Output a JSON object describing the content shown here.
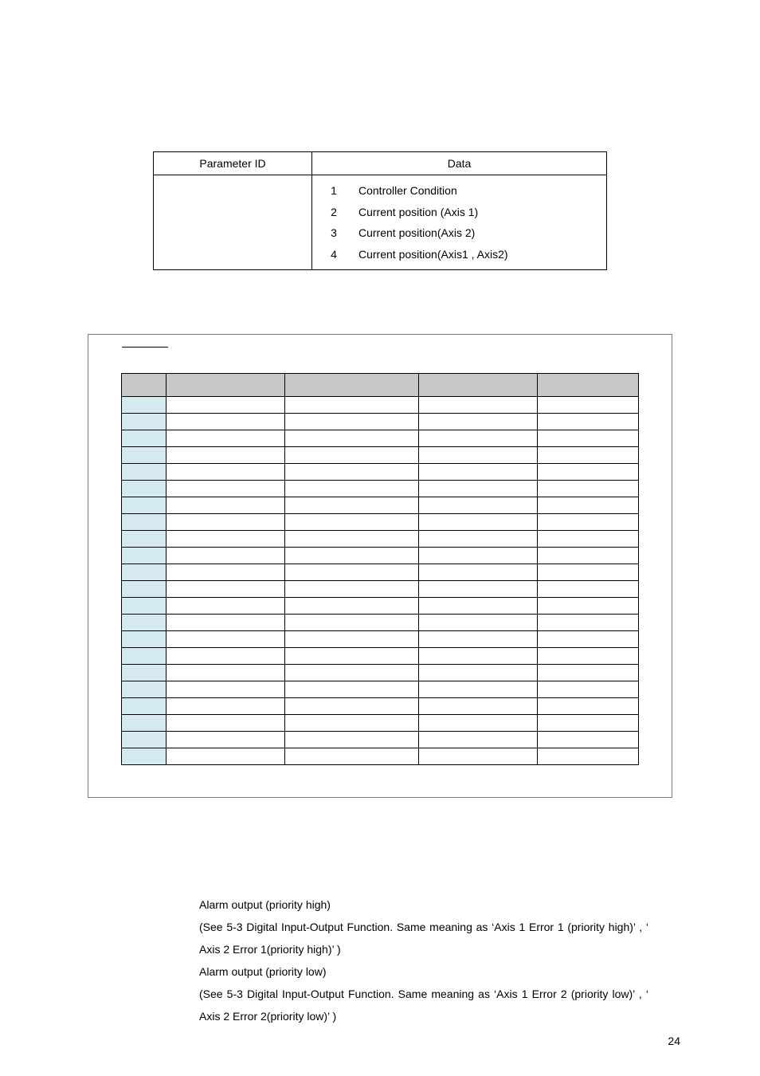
{
  "top_table": {
    "headers": [
      "Parameter ID",
      "Data"
    ],
    "data_items": [
      {
        "num": "1",
        "text": "Controller Condition"
      },
      {
        "num": "2",
        "text": "Current position (Axis 1)"
      },
      {
        "num": "3",
        "text": "Current position(Axis 2)"
      },
      {
        "num": "4",
        "text": "Current position(Axis1 , Axis2)"
      }
    ]
  },
  "inner_table": {
    "num_data_rows": 22,
    "num_cols": 5
  },
  "notes": {
    "line1": "Alarm output (priority high)",
    "line2": "(See 5-3 Digital Input-Output Function. Same meaning as ‘Axis 1 Error 1 (priority high)’ , ‘ Axis 2 Error 1(priority high)’ )",
    "line3": "Alarm output (priority low)",
    "line4": "(See 5-3 Digital Input-Output Function. Same meaning as ‘Axis 1 Error 2 (priority low)’ , ‘ Axis 2 Error 2(priority low)’ )"
  },
  "page_number": "24",
  "colors": {
    "header_bg": "#c7c7c7",
    "firstcol_bg": "#d4eaf0",
    "border": "#000000",
    "box_border": "#7a7a7a"
  }
}
